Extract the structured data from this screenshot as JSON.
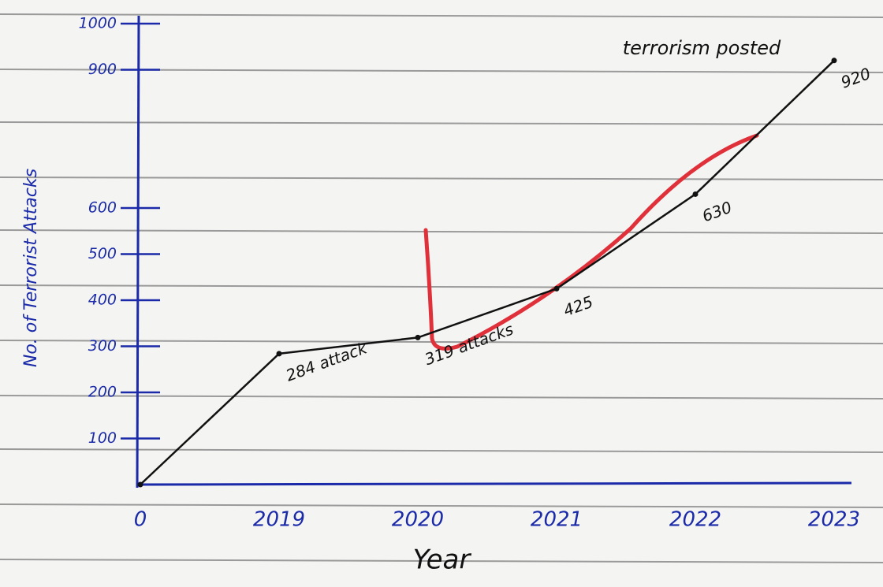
{
  "chart_data": {
    "type": "line",
    "x_label": "Year",
    "y_label": "No. of Terrorist Attacks",
    "annotation": "terrorism posted",
    "categories": [
      "0",
      "2019",
      "2020",
      "2021",
      "2022",
      "2023"
    ],
    "values": [
      0,
      284,
      319,
      425,
      630,
      920
    ],
    "value_labels": [
      null,
      "284 attack",
      "319 attacks",
      "425",
      "630",
      "920"
    ],
    "color": "#111111",
    "axis_color": "#1a2aa8",
    "ylim": [
      0,
      1000
    ],
    "yticks": [
      100,
      200,
      300,
      400,
      500,
      600,
      900,
      1000
    ]
  }
}
